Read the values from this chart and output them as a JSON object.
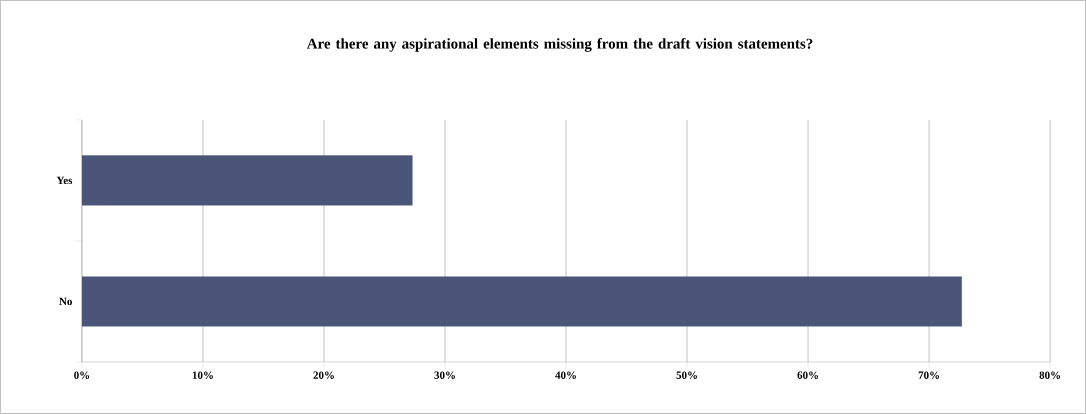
{
  "chart_data": {
    "type": "bar",
    "orientation": "horizontal",
    "title": "Are there any aspirational elements missing from the draft vision statements?",
    "categories": [
      "Yes",
      "No"
    ],
    "values": [
      27.3,
      72.7
    ],
    "color": "#4a5578",
    "xlim": [
      0,
      80
    ],
    "xticks": [
      {
        "value": 0,
        "label": "0%"
      },
      {
        "value": 10,
        "label": "10%"
      },
      {
        "value": 20,
        "label": "20%"
      },
      {
        "value": 30,
        "label": "30%"
      },
      {
        "value": 40,
        "label": "40%"
      },
      {
        "value": 50,
        "label": "50%"
      },
      {
        "value": 60,
        "label": "60%"
      },
      {
        "value": 70,
        "label": "70%"
      },
      {
        "value": 80,
        "label": "80%"
      }
    ],
    "grid": "x"
  }
}
